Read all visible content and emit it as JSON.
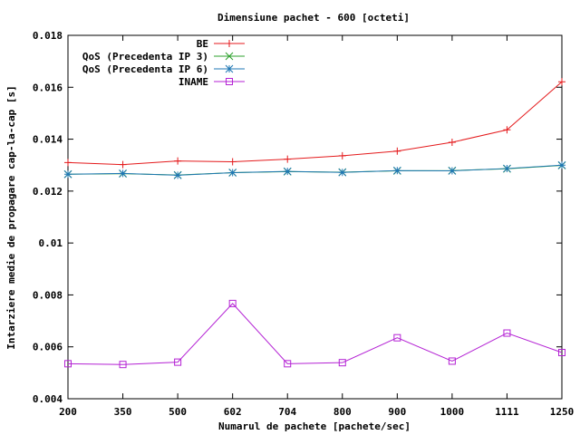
{
  "chart_data": {
    "type": "line",
    "title": "Dimensiune pachet - 600 [octeti]",
    "xlabel": "Numarul de pachete [pachete/sec]",
    "ylabel": "Intarziere medie de propagare cap-la-cap [s]",
    "categories": [
      "200",
      "350",
      "500",
      "602",
      "704",
      "800",
      "900",
      "1000",
      "1111",
      "1250"
    ],
    "ylim": [
      0.004,
      0.018
    ],
    "yticks": [
      "0.004",
      "0.006",
      "0.008",
      "0.01",
      "0.012",
      "0.014",
      "0.016",
      "0.018"
    ],
    "grid": false,
    "legend_position": "top-right",
    "series": [
      {
        "name": "BE",
        "color": "#e41a1c",
        "marker": "plus",
        "values": [
          0.0131,
          0.01302,
          0.01316,
          0.01313,
          0.01323,
          0.01336,
          0.01354,
          0.01388,
          0.01436,
          0.01621
        ]
      },
      {
        "name": "QoS (Precedenta IP 3)",
        "color": "#2ca02c",
        "marker": "cross",
        "values": [
          0.01265,
          0.01267,
          0.01262,
          0.01271,
          0.01275,
          0.01273,
          0.01278,
          0.01279,
          0.01286,
          0.01299
        ]
      },
      {
        "name": "QoS (Precedenta IP 6)",
        "color": "#1f77b4",
        "marker": "star",
        "values": [
          0.01265,
          0.01268,
          0.01261,
          0.01271,
          0.01276,
          0.01272,
          0.01279,
          0.01278,
          0.01287,
          0.013
        ]
      },
      {
        "name": "INAME",
        "color": "#b422d4",
        "marker": "square",
        "values": [
          0.00535,
          0.00532,
          0.00541,
          0.00767,
          0.00535,
          0.00539,
          0.00635,
          0.00545,
          0.00653,
          0.00578
        ]
      }
    ]
  }
}
